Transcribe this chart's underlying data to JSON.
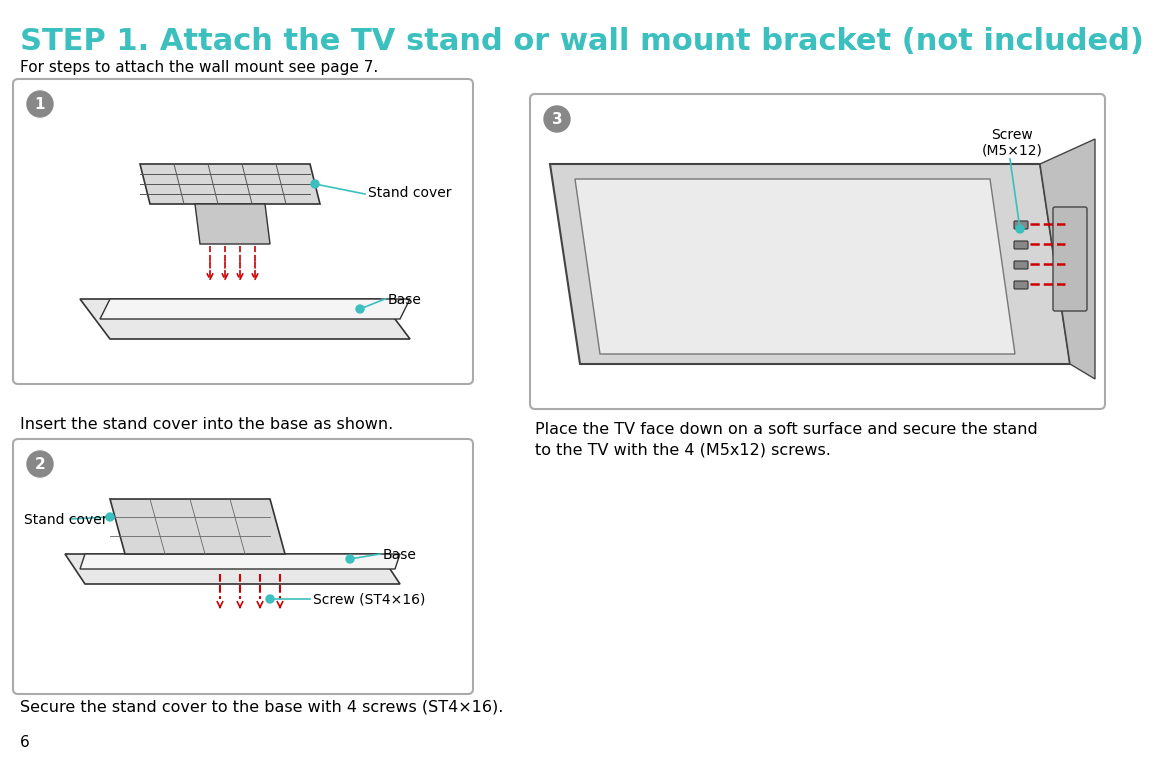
{
  "title": "STEP 1. Attach the TV stand or wall mount bracket (not included)",
  "subtitle": "For steps to attach the wall mount see page 7.",
  "title_color": "#3BBFBF",
  "subtitle_color": "#000000",
  "caption1": "Insert the stand cover into the base as shown.",
  "caption2": "Secure the stand cover to the base with 4 screws (ST4×16).",
  "caption3": "Place the TV face down on a soft surface and secure the stand\nto the TV with the 4 (M5x12) screws.",
  "page_number": "6",
  "box_border_color": "#AAAAAA",
  "box_bg_color": "#FFFFFF",
  "label_color": "#3BBFBF",
  "text_color": "#000000",
  "annotation_dot_color": "#3BBFBF",
  "red_color": "#CC0000",
  "number_circle_color": "#888888",
  "number_text_color": "#FFFFFF",
  "box1_label1": "Stand cover",
  "box1_label2": "Base",
  "box2_label1": "Stand cover",
  "box2_label2": "Base",
  "box2_label3": "Screw (ST4×16)",
  "box3_label1": "Screw\n(M5×12)"
}
